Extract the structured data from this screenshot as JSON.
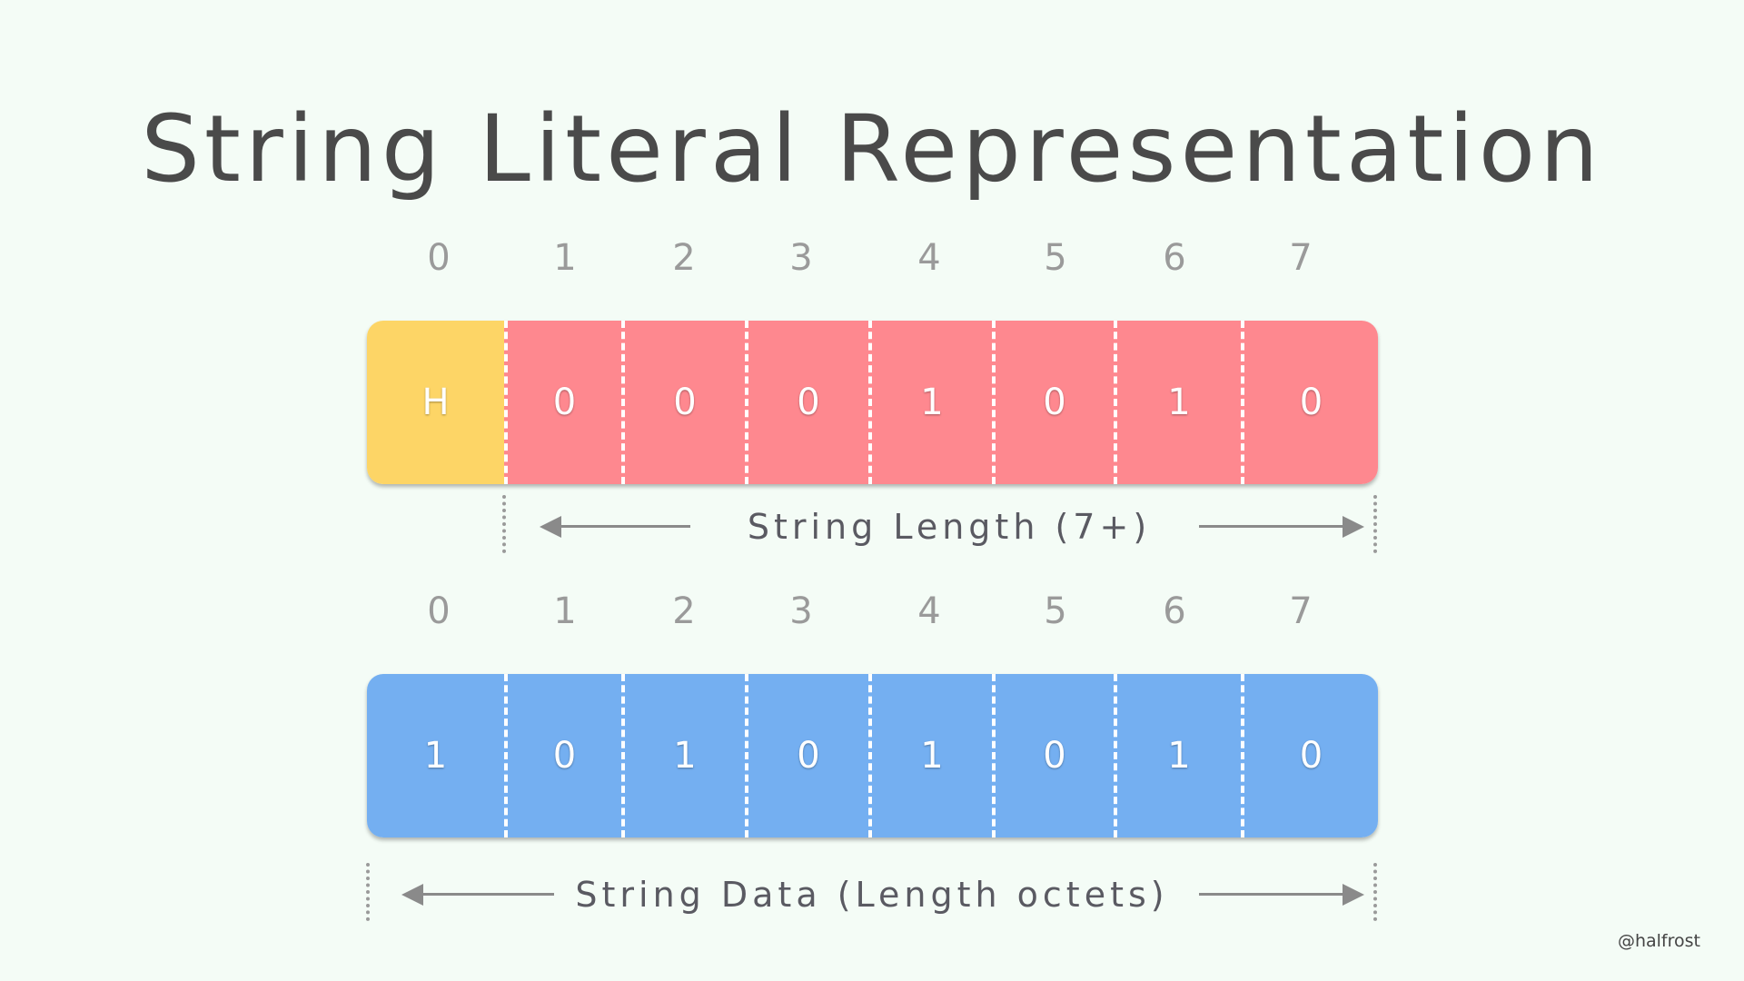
{
  "title": "String Literal Representation",
  "colors": {
    "background": "#f4fcf6",
    "h_flag": "#fdd566",
    "length_bits": "#fe888f",
    "data_bits": "#74aff1",
    "text": "#4a4a4a",
    "index": "#9a9a9a",
    "arrow": "#8a8a8a"
  },
  "length_octet": {
    "indices": [
      "0",
      "1",
      "2",
      "3",
      "4",
      "5",
      "6",
      "7"
    ],
    "cells": [
      "H",
      "0",
      "0",
      "0",
      "1",
      "0",
      "1",
      "0"
    ],
    "span_label": "String Length (7+)"
  },
  "data_octet": {
    "indices": [
      "0",
      "1",
      "2",
      "3",
      "4",
      "5",
      "6",
      "7"
    ],
    "cells": [
      "1",
      "0",
      "1",
      "0",
      "1",
      "0",
      "1",
      "0"
    ],
    "span_label": "String Data (Length octets)"
  },
  "credit": "@halfrost"
}
